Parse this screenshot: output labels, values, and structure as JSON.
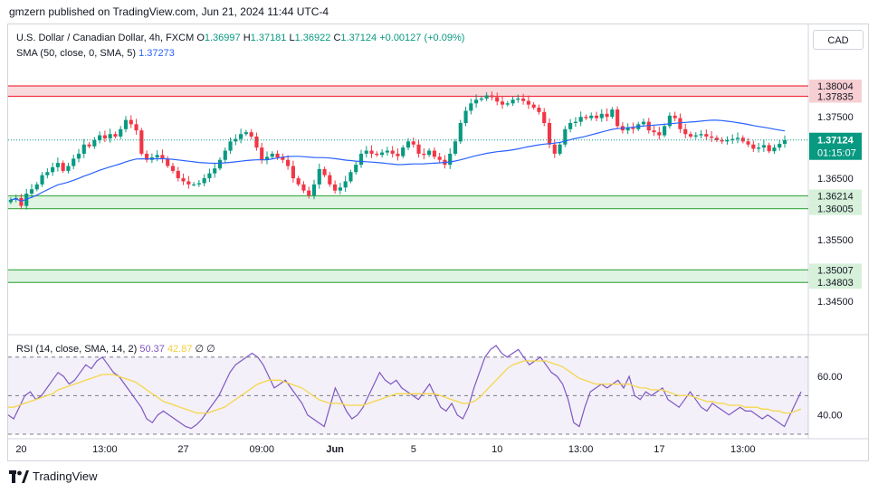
{
  "publisher": "gmzern published on TradingView.com, Jun 21, 2024 11:44 UTC-4",
  "legend": {
    "symbol": "U.S. Dollar / Canadian Dollar, 4h, FXCM",
    "open_label": "O",
    "open": "1.36997",
    "high_label": "H",
    "high": "1.37181",
    "low_label": "L",
    "low": "1.36922",
    "close_label": "C",
    "close": "1.37124",
    "change": "+0.00127 (+0.09%)",
    "sma_label": "SMA (50, close, 0, SMA, 5)",
    "sma_value": "1.37273"
  },
  "rsi_legend": {
    "label": "RSI (14, close, SMA, 14, 2)",
    "rsi": "50.37",
    "rsi_ma": "42.87",
    "extra": "∅ ∅"
  },
  "currency": "CAD",
  "branding": "TradingView",
  "colors": {
    "up": "#089981",
    "down": "#f23645",
    "sma": "#2962ff",
    "rsi": "#7e57c2",
    "rsi_ma": "#f5d64a",
    "resistance_zone": "#f7cfd3",
    "support_zone": "#d6f0da"
  },
  "chart_data": [
    {
      "type": "candlestick",
      "title": "",
      "xlabel": "",
      "ylabel": "",
      "ylim": [
        1.3432,
        1.3852
      ],
      "y_ticks": [
        "1.37500",
        "1.36500",
        "1.35500",
        "1.34500"
      ],
      "x_ticks": [
        "20",
        "13:00",
        "27",
        "09:00",
        "Jun",
        "5",
        "10",
        "13:00",
        "17",
        "13:00"
      ],
      "x_tick_positions_candle_index": [
        2,
        18,
        33,
        48,
        62,
        77,
        93,
        109,
        124,
        140
      ],
      "candle_count": 153,
      "price_path": [
        1.3615,
        1.3618,
        1.3605,
        1.3625,
        1.3632,
        1.364,
        1.3655,
        1.366,
        1.3668,
        1.3675,
        1.3662,
        1.367,
        1.3682,
        1.369,
        1.3705,
        1.3702,
        1.3712,
        1.372,
        1.3715,
        1.3722,
        1.3718,
        1.373,
        1.3745,
        1.3738,
        1.3728,
        1.369,
        1.368,
        1.3684,
        1.3688,
        1.3682,
        1.367,
        1.3662,
        1.365,
        1.3645,
        1.364,
        1.364,
        1.3642,
        1.365,
        1.3658,
        1.3666,
        1.368,
        1.3695,
        1.371,
        1.3714,
        1.3722,
        1.3725,
        1.3718,
        1.37,
        1.368,
        1.3685,
        1.369,
        1.3684,
        1.368,
        1.367,
        1.365,
        1.364,
        1.363,
        1.3622,
        1.364,
        1.3665,
        1.3655,
        1.364,
        1.363,
        1.3635,
        1.3645,
        1.366,
        1.3672,
        1.369,
        1.3695,
        1.369,
        1.3688,
        1.3692,
        1.3695,
        1.369,
        1.3686,
        1.37,
        1.371,
        1.3705,
        1.369,
        1.3688,
        1.3695,
        1.3685,
        1.368,
        1.3672,
        1.369,
        1.371,
        1.374,
        1.376,
        1.3772,
        1.3778,
        1.378,
        1.3785,
        1.3782,
        1.3775,
        1.377,
        1.3772,
        1.3778,
        1.378,
        1.3776,
        1.377,
        1.3765,
        1.3758,
        1.374,
        1.3705,
        1.369,
        1.3705,
        1.373,
        1.374,
        1.3742,
        1.375,
        1.3748,
        1.3752,
        1.3748,
        1.3755,
        1.375,
        1.3762,
        1.3735,
        1.3728,
        1.3732,
        1.373,
        1.3738,
        1.3742,
        1.3728,
        1.3725,
        1.372,
        1.3735,
        1.3752,
        1.3748,
        1.373,
        1.3722,
        1.3718,
        1.372,
        1.3722,
        1.3718,
        1.3716,
        1.3712,
        1.371,
        1.3712,
        1.3714,
        1.3716,
        1.371,
        1.3705,
        1.3698,
        1.37,
        1.3704,
        1.3694,
        1.37,
        1.3706,
        1.3712
      ],
      "sma": {
        "name": "SMA (50, close, 0, SMA, 5)",
        "last_value": 1.37273
      },
      "last_price_label": "1.37124",
      "countdown": "01:15:07",
      "zones": [
        {
          "kind": "resistance",
          "top": 1.38004,
          "bottom": 1.37835,
          "top_label": "1.38004",
          "bottom_label": "1.37835"
        },
        {
          "kind": "support",
          "top": 1.36214,
          "bottom": 1.36005,
          "top_label": "1.36214",
          "bottom_label": "1.36005"
        },
        {
          "kind": "support",
          "top": 1.35007,
          "bottom": 1.34803,
          "top_label": "1.35007",
          "bottom_label": "1.34803"
        }
      ]
    },
    {
      "type": "line",
      "title": "",
      "series": [
        {
          "name": "RSI",
          "values": [
            40,
            38,
            44,
            50,
            52,
            48,
            50,
            54,
            58,
            62,
            60,
            56,
            58,
            62,
            66,
            64,
            68,
            70,
            66,
            62,
            60,
            56,
            52,
            48,
            44,
            38,
            36,
            40,
            42,
            40,
            38,
            36,
            34,
            33,
            35,
            38,
            42,
            46,
            50,
            56,
            62,
            66,
            68,
            70,
            72,
            70,
            66,
            60,
            54,
            56,
            58,
            54,
            50,
            46,
            40,
            38,
            36,
            34,
            44,
            54,
            48,
            42,
            38,
            40,
            44,
            50,
            56,
            62,
            58,
            56,
            58,
            54,
            52,
            50,
            48,
            52,
            56,
            50,
            44,
            42,
            46,
            40,
            38,
            44,
            54,
            62,
            70,
            74,
            76,
            72,
            70,
            72,
            74,
            70,
            66,
            68,
            70,
            66,
            62,
            60,
            56,
            48,
            36,
            34,
            44,
            52,
            54,
            56,
            54,
            56,
            58,
            54,
            60,
            50,
            48,
            52,
            50,
            52,
            54,
            48,
            46,
            44,
            48,
            52,
            48,
            44,
            42,
            46,
            44,
            42,
            40,
            42,
            44,
            42,
            42,
            40,
            38,
            40,
            38,
            36,
            34,
            40,
            46,
            52
          ]
        },
        {
          "name": "RSI MA",
          "values": [
            44,
            44,
            45,
            46,
            47,
            48,
            49,
            50,
            51,
            53,
            54,
            55,
            56,
            57,
            58,
            59,
            60,
            61,
            61,
            61,
            60,
            59,
            58,
            57,
            55,
            53,
            51,
            49,
            47,
            46,
            45,
            44,
            43,
            42,
            41,
            41,
            41,
            42,
            43,
            44,
            46,
            48,
            50,
            52,
            54,
            56,
            57,
            58,
            58,
            58,
            57,
            56,
            55,
            54,
            52,
            50,
            48,
            47,
            46,
            46,
            46,
            45,
            45,
            45,
            45,
            46,
            47,
            48,
            49,
            50,
            51,
            51,
            51,
            51,
            51,
            51,
            51,
            51,
            50,
            49,
            48,
            47,
            46,
            46,
            47,
            49,
            52,
            55,
            58,
            61,
            64,
            66,
            67,
            68,
            68,
            68,
            68,
            68,
            67,
            66,
            65,
            63,
            61,
            59,
            58,
            57,
            56,
            56,
            56,
            56,
            56,
            56,
            56,
            55,
            54,
            54,
            53,
            53,
            53,
            52,
            51,
            50,
            50,
            50,
            49,
            48,
            47,
            47,
            46,
            46,
            45,
            45,
            45,
            44,
            44,
            44,
            43,
            43,
            42,
            42,
            41,
            41,
            42,
            43
          ]
        }
      ],
      "ylim": [
        30,
        76
      ],
      "y_ticks": [
        "60.00",
        "40.00"
      ],
      "bands": [
        70,
        50,
        30
      ]
    }
  ]
}
